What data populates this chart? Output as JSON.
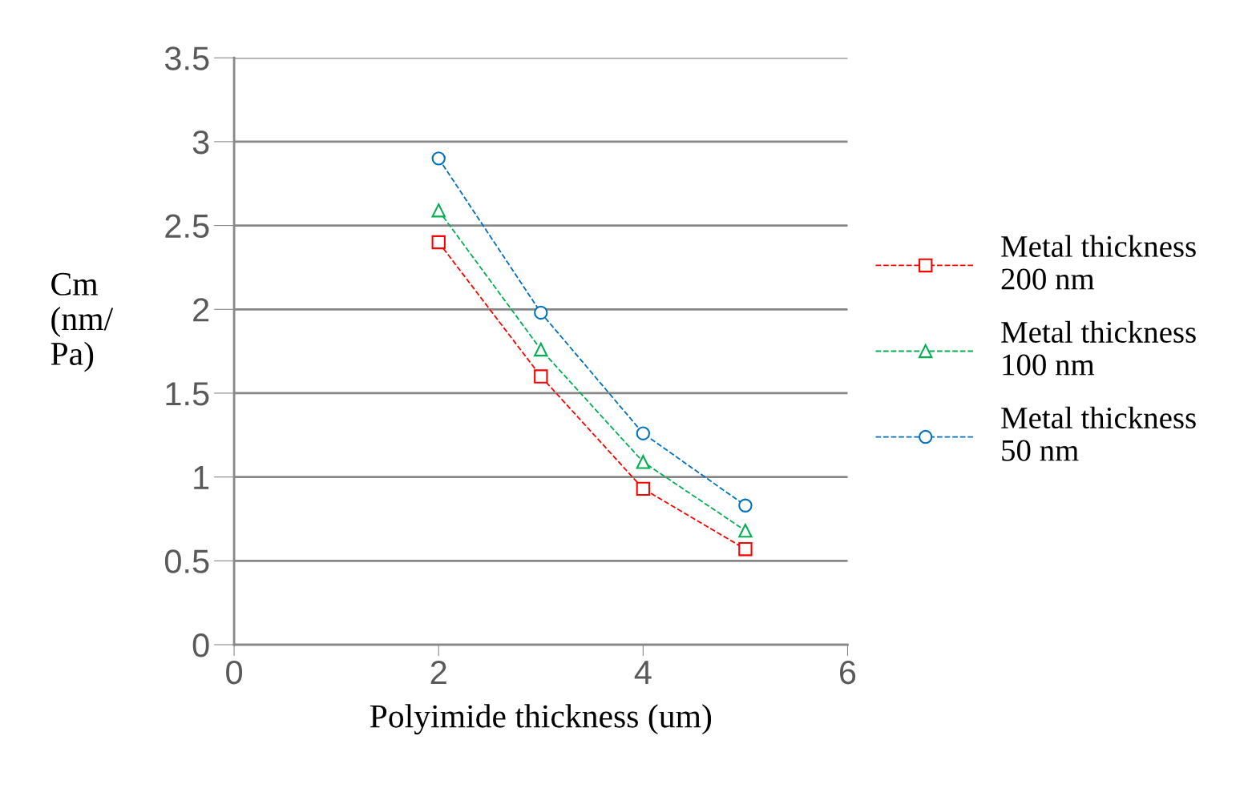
{
  "chart_data": {
    "type": "line",
    "xlabel": "Polyimide thickness (um)",
    "ylabel": "Cm\n(nm/\nPa)",
    "x": [
      2,
      3,
      4,
      5
    ],
    "series": [
      {
        "name": "Metal thickness\n200 nm",
        "color": "#ff0000",
        "marker": "square",
        "values": [
          2.4,
          1.6,
          0.93,
          0.57
        ]
      },
      {
        "name": "Metal thickness\n100 nm",
        "color": "#00b050",
        "marker": "triangle",
        "values": [
          2.59,
          1.76,
          1.09,
          0.68
        ]
      },
      {
        "name": "Metal thickness\n50 nm",
        "color": "#0070c0",
        "marker": "circle",
        "values": [
          2.9,
          1.98,
          1.26,
          0.83
        ]
      }
    ],
    "line_style": "dashed",
    "xlim": [
      0,
      6
    ],
    "xticks": [
      0,
      2,
      4,
      6
    ],
    "ylim": [
      0,
      3.5
    ],
    "yticks": [
      0,
      0.5,
      1,
      1.5,
      2,
      2.5,
      3,
      3.5
    ],
    "grid": "y",
    "legend": "right"
  }
}
